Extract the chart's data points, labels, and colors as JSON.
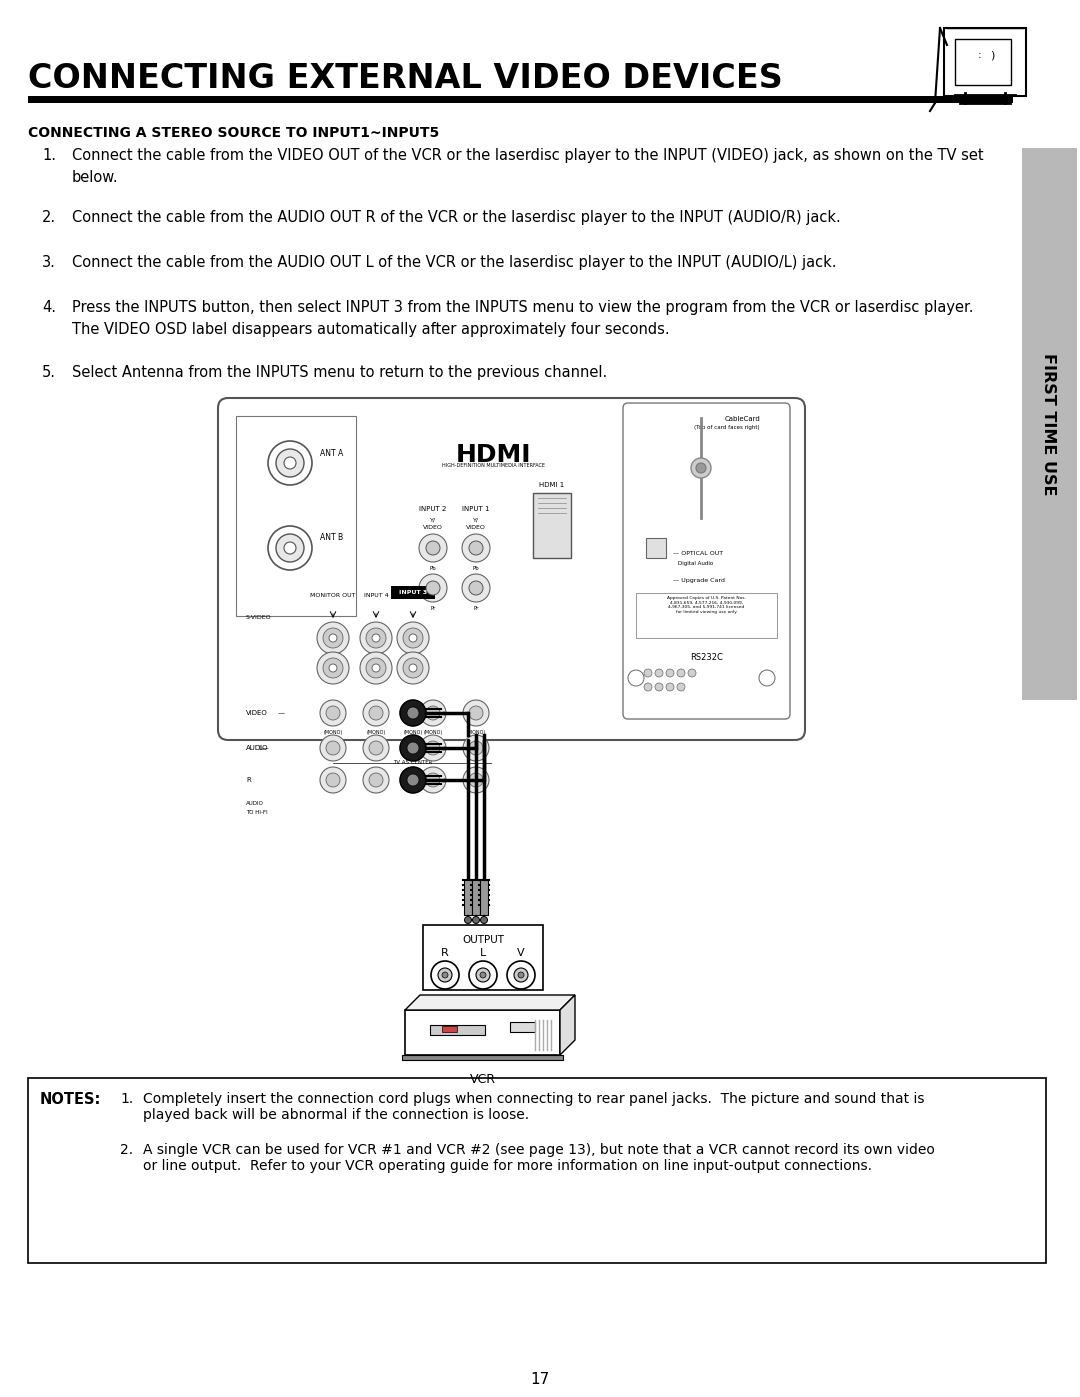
{
  "title": "CONNECTING EXTERNAL VIDEO DEVICES",
  "section_title": "CONNECTING A STEREO SOURCE TO INPUT1~INPUT5",
  "step1": "Connect the cable from the VIDEO OUT of the VCR or the laserdisc player to the INPUT (VIDEO) jack, as shown on the TV set below.",
  "step2": "Connect the cable from the AUDIO OUT R of the VCR or the laserdisc player to the INPUT (AUDIO/R) jack.",
  "step3": "Connect the cable from the AUDIO OUT L of the VCR or the laserdisc player to the INPUT (AUDIO/L) jack.",
  "step4a": "Press the INPUTS button, then select INPUT 3 from the INPUTS menu to view the program from the VCR or laserdisc player.",
  "step4b": "The VIDEO OSD label disappears automatically after approximately four seconds.",
  "step5": "Select Antenna from the INPUTS menu to return to the previous channel.",
  "note1": "Completely insert the connection cord plugs when connecting to rear panel jacks.  The picture and sound that is played back will be abnormal if the connection is loose.",
  "note2": "A single VCR can be used for VCR #1 and VCR #2 (see page 13), but note that a VCR cannot record its own video or line output.  Refer to your VCR operating guide for more information on line input-output connections.",
  "page_number": "17",
  "sidebar_text": "FIRST TIME USE",
  "bg_color": "#ffffff"
}
